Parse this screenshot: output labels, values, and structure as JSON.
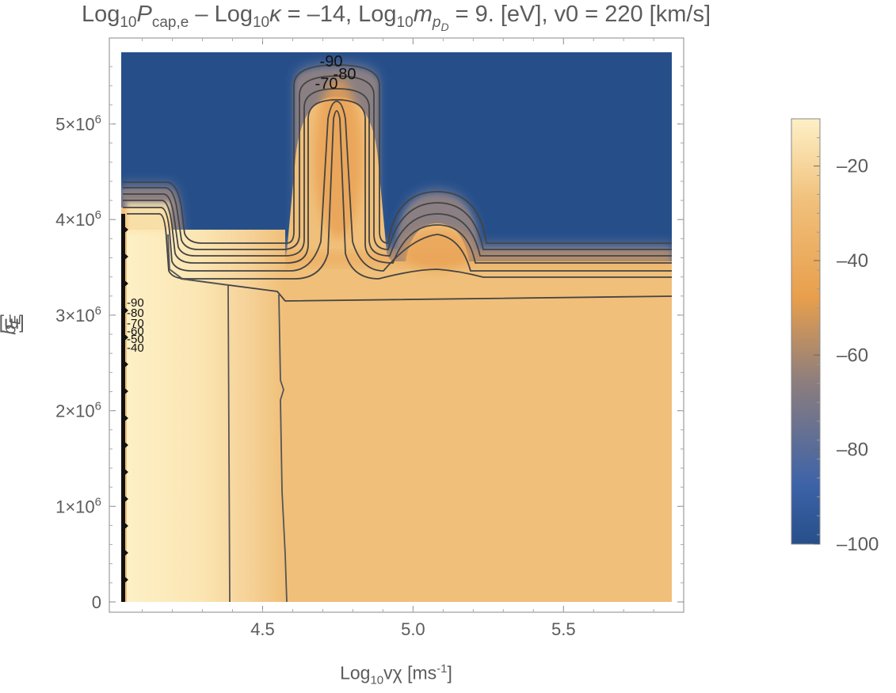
{
  "title": {
    "p1": "Log",
    "p1sub": "10",
    "p2": "P",
    "p2sub": "cap,e",
    "p3": " – Log",
    "p3sub": "10",
    "p4": "κ",
    "p5": " = –14, Log",
    "p5sub": "10",
    "p6": "m",
    "p6sub": "p",
    "p6subsub": "D",
    "p7": " = 9. [eV], v0 = 220 [km/s]"
  },
  "xlabel": {
    "main": "Log",
    "sub": "10",
    "rest": "vχ [ms",
    "sup": "-1",
    "end": "]"
  },
  "ylabel": {
    "main": "b",
    "sub": "E",
    "rest": " [m]"
  },
  "chart_data": {
    "type": "heatmap",
    "subtype": "contour",
    "xlim": [
      4.03,
      5.86
    ],
    "ylim": [
      0,
      5750000.0
    ],
    "x_ticks": [
      {
        "value": 4.5,
        "label": "4.5"
      },
      {
        "value": 5.0,
        "label": "5.0"
      },
      {
        "value": 5.5,
        "label": "5.5"
      }
    ],
    "y_ticks": [
      {
        "value": 0,
        "label": "0",
        "base": "",
        "exp": ""
      },
      {
        "value": 1000000.0,
        "label": "",
        "base": "1×10",
        "exp": "6"
      },
      {
        "value": 2000000.0,
        "label": "",
        "base": "2×10",
        "exp": "6"
      },
      {
        "value": 3000000.0,
        "label": "",
        "base": "3×10",
        "exp": "6"
      },
      {
        "value": 4000000.0,
        "label": "",
        "base": "4×10",
        "exp": "6"
      },
      {
        "value": 5000000.0,
        "label": "",
        "base": "5×10",
        "exp": "6"
      }
    ],
    "colorbar": {
      "range": [
        -100,
        -10
      ],
      "ticks": [
        -20,
        -40,
        -60,
        -80,
        -100
      ],
      "labels": [
        "–20",
        "–40",
        "–60",
        "–80",
        "–100"
      ],
      "colors": [
        "#264f8a",
        "#3d63a8",
        "#8c7d7e",
        "#e89f4c",
        "#f0bf79",
        "#fdf0c6"
      ]
    },
    "colors": {
      "plateau": "#f0bf79",
      "bright": "#fdf0c6",
      "background": "#264f8a",
      "contour": "#444444"
    },
    "contour_labels": [
      "-90",
      "-80",
      "-70",
      "-90",
      "-80",
      "-70",
      "-60",
      "-50",
      "-40"
    ],
    "features": [
      {
        "name": "left band",
        "x": [
          4.03,
          4.22
        ],
        "y_top": 4350000.0
      },
      {
        "name": "narrow peak",
        "x_center": 4.75,
        "y_top": 5600000.0
      },
      {
        "name": "broad bump",
        "x_center": 5.09,
        "y_top": 4300000.0
      },
      {
        "name": "plateau edge",
        "x": [
          4.25,
          5.86
        ],
        "y_edge": 3300000.0
      },
      {
        "name": "vertical contour 1",
        "x": 4.41
      },
      {
        "name": "vertical contour 2",
        "x": 4.6
      }
    ]
  }
}
